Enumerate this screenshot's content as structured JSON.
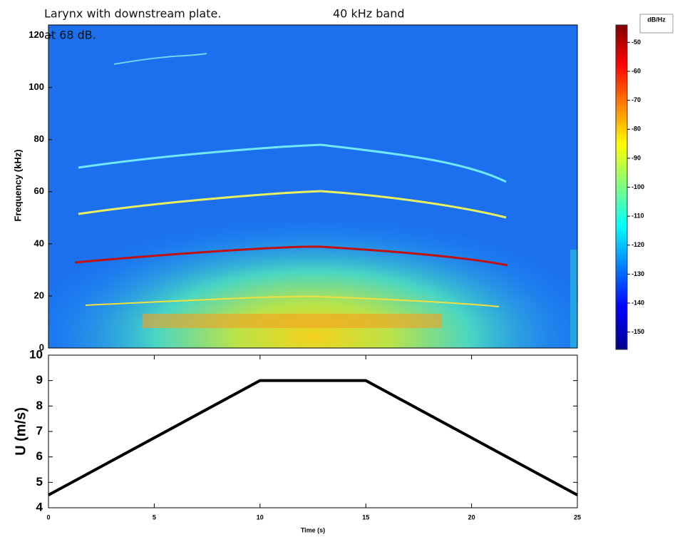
{
  "chart_data": [
    {
      "type": "spectrogram",
      "annotations": [
        "Larynx with downstream plate.",
        "40 kHz band",
        "at 68 dB."
      ],
      "ylabel": "Frequency (kHz)",
      "xlim": [
        0,
        25
      ],
      "ylim": [
        0,
        124
      ],
      "yticks": [
        0,
        20,
        40,
        60,
        80,
        100,
        120
      ],
      "colorbar_label": "dB/Hz",
      "clim": [
        -156,
        -44
      ],
      "cticks": [
        -50,
        -60,
        -70,
        -80,
        -90,
        -100,
        -110,
        -120,
        -130,
        -140,
        -150
      ]
    },
    {
      "type": "line",
      "xlabel": "Time (s)",
      "ylabel": "U (m/s)",
      "x": [
        0,
        10,
        15,
        25
      ],
      "values": [
        4.5,
        9,
        9,
        4.5
      ],
      "color": "#000000",
      "xlim": [
        0,
        25
      ],
      "ylim": [
        4,
        10
      ],
      "xticks": [
        0,
        5,
        10,
        15,
        20,
        25
      ],
      "yticks": [
        4,
        5,
        6,
        7,
        8,
        9,
        10
      ]
    }
  ]
}
